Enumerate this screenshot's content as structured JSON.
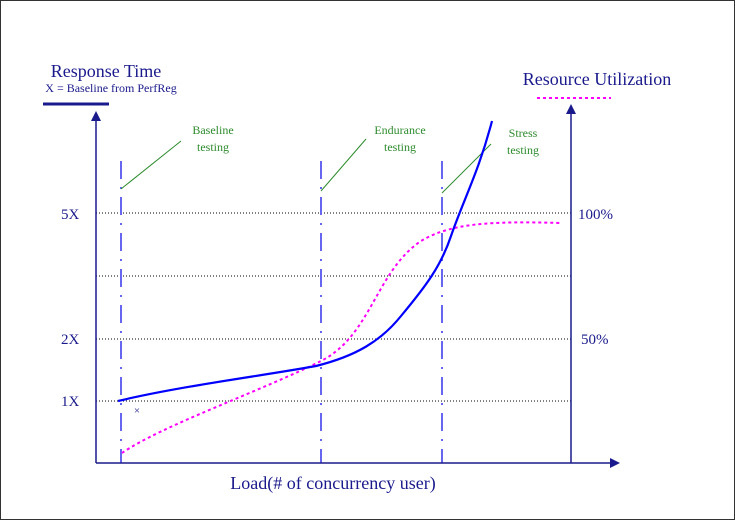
{
  "diagram": {
    "left_axis": {
      "title": "Response Time",
      "subtitle": "X = Baseline from PerfReg",
      "ticks": [
        "5X",
        "2X",
        "1X"
      ]
    },
    "right_axis": {
      "title": "Resource Utilization",
      "ticks": [
        "100%",
        "50%"
      ]
    },
    "x_axis": {
      "title": "Load(# of concurrency user)"
    },
    "phase_labels": [
      {
        "line1": "Baseline",
        "line2": "testing"
      },
      {
        "line1": "Endurance",
        "line2": "testing"
      },
      {
        "line1": "Stress",
        "line2": "testing"
      }
    ],
    "baseline_marker": "×",
    "colors": {
      "axis": "#1a1a8c",
      "response_curve": "#0000ff",
      "utilization_curve": "#ff00ff",
      "phase_line": "#6666ee",
      "phase_text": "#2e8b2e",
      "grid": "#000000"
    }
  }
}
